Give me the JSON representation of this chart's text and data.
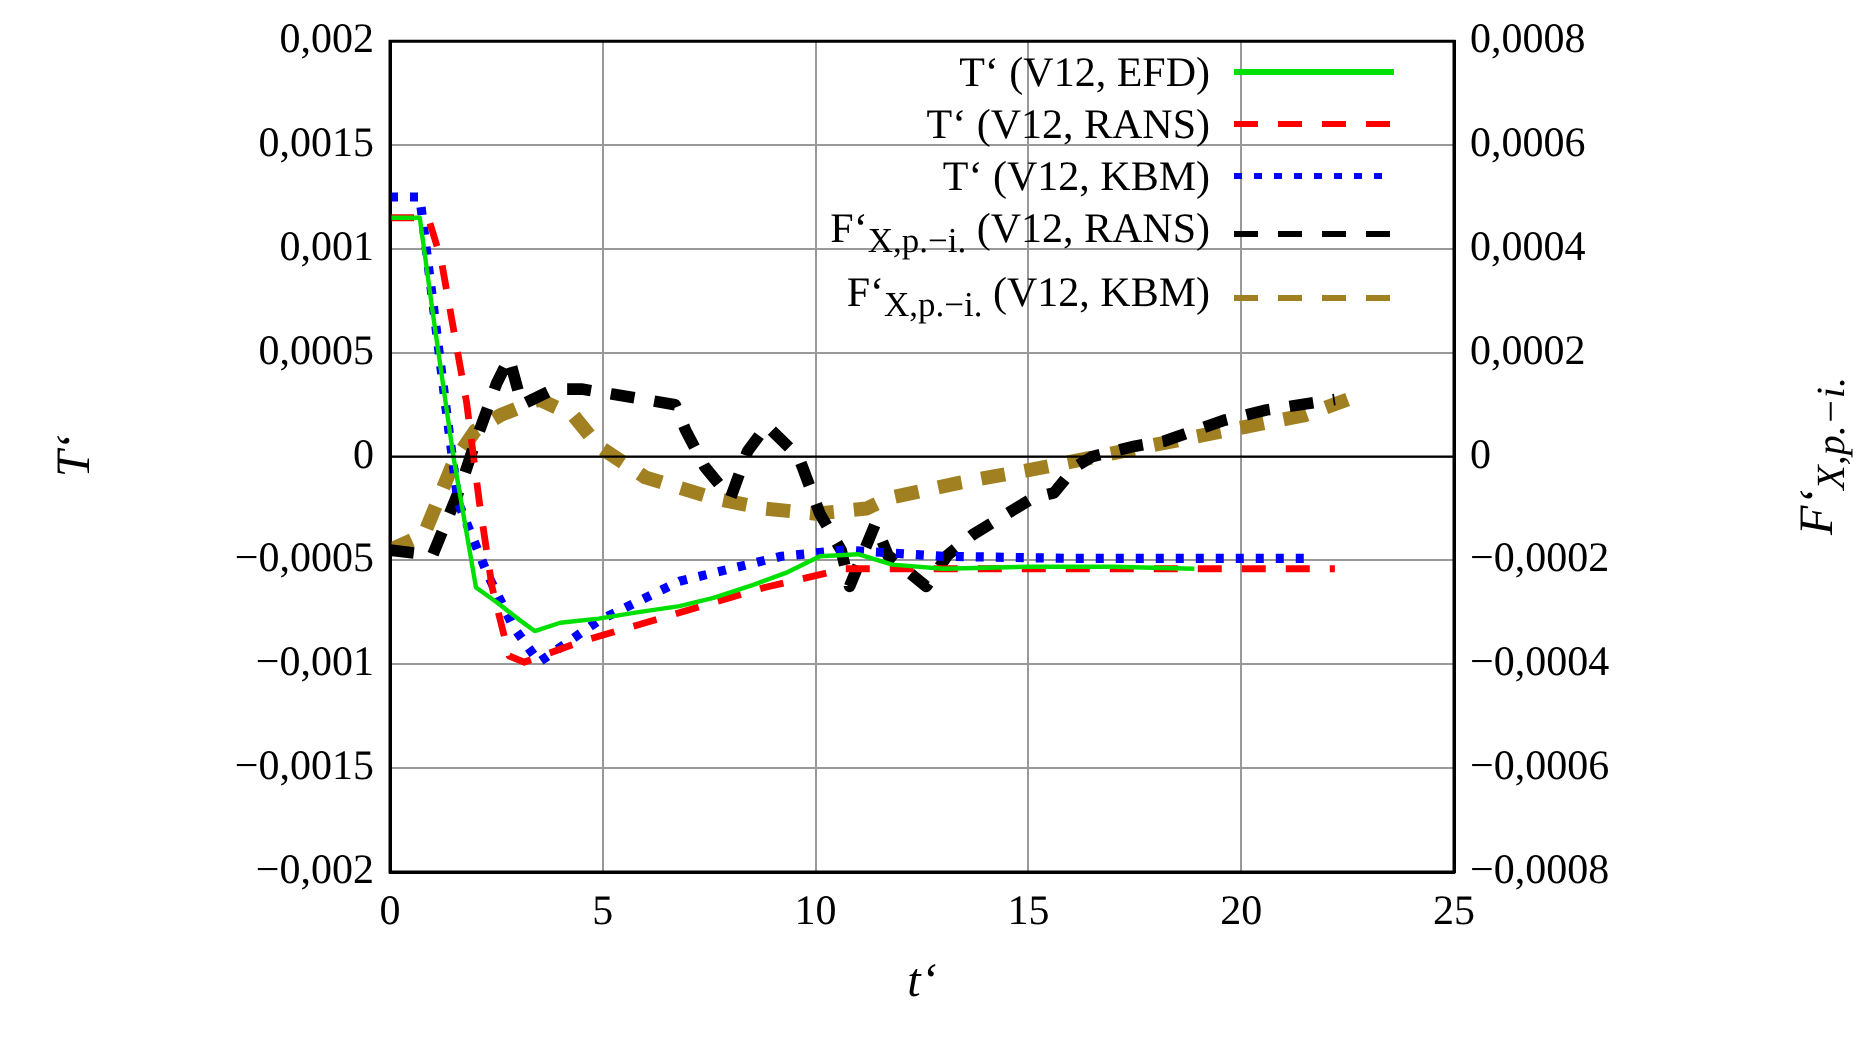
{
  "chart_data": {
    "type": "line",
    "xlabel": "t‘",
    "ylabel": "T‘",
    "y2label": "F‘$_{X,p.−i.}$",
    "xlim": [
      0,
      25
    ],
    "xticks": [
      0,
      5,
      10,
      15,
      20,
      25
    ],
    "ylim": [
      -0.002,
      0.002
    ],
    "yticks": [
      {
        "value": -0.002,
        "label": "−0,002"
      },
      {
        "value": -0.0015,
        "label": "−0,0015"
      },
      {
        "value": -0.001,
        "label": "−0,001"
      },
      {
        "value": -0.0005,
        "label": "−0,0005"
      },
      0,
      {
        "value": 0.0005,
        "label": "0,0005"
      },
      {
        "value": 0.001,
        "label": "0,001"
      },
      {
        "value": 0.0015,
        "label": "0,0015"
      },
      {
        "value": 0.002,
        "label": "0,002"
      }
    ],
    "y2lim": [
      -0.0008,
      0.0008
    ],
    "y2ticks": [
      {
        "value": -0.0008,
        "label": "−0,0008"
      },
      {
        "value": -0.0006,
        "label": "−0,0006"
      },
      {
        "value": -0.0004,
        "label": "−0,0004"
      },
      {
        "value": -0.0002,
        "label": "−0,0002"
      },
      0,
      {
        "value": 0.0002,
        "label": "0,0002"
      },
      {
        "value": 0.0004,
        "label": "0,0004"
      },
      {
        "value": 0.0006,
        "label": "0,0006"
      },
      {
        "value": 0.0008,
        "label": "0,0008"
      }
    ],
    "grid": true,
    "legend": "top right",
    "marker": "none",
    "ref_lines": [
      {
        "axis": "y",
        "value": 0,
        "color": "#000000"
      }
    ],
    "series": [
      {
        "name": "T‘ (V12, EFD)",
        "color": "#00e000",
        "line_style": "solid",
        "x": [
          0,
          0.7,
          1.0,
          1.49,
          2.02,
          2.5,
          3.0,
          3.4,
          4.0,
          4.9,
          5.8,
          6.8,
          7.6,
          8.5,
          9.3,
          10.1,
          11.0,
          11.8,
          13.0,
          15.0,
          17.0,
          18.9
        ],
        "values": [
          0.00115,
          0.00115,
          0.0007,
          0,
          -0.00063,
          -0.0007,
          -0.00078,
          -0.00084,
          -0.0008,
          -0.00078,
          -0.00075,
          -0.00072,
          -0.00068,
          -0.00062,
          -0.00056,
          -0.00048,
          -0.00047,
          -0.00052,
          -0.00054,
          -0.00053,
          -0.00053,
          -0.00054
        ]
      },
      {
        "name": "T‘ (V12, RANS)",
        "color": "#ff0000",
        "line_style": "dashed",
        "x": [
          0,
          0.9,
          1.2,
          1.8,
          2.1,
          2.4,
          2.8,
          3.15,
          4.5,
          6.0,
          8.8,
          10.7,
          13.0,
          16.0,
          19.0,
          22.2
        ],
        "values": [
          0.00115,
          0.00115,
          0.00095,
          0.00026,
          -0.00022,
          -0.00063,
          -0.00096,
          -0.00099,
          -0.00089,
          -0.0008,
          -0.00063,
          -0.00054,
          -0.00054,
          -0.00054,
          -0.00054,
          -0.00054
        ]
      },
      {
        "name": "T‘ (V12, KBM)",
        "color": "#0000ff",
        "line_style": "dotted",
        "x": [
          0,
          0.7,
          1.3,
          1.6,
          2.3,
          2.9,
          3.5,
          4.9,
          6.8,
          9.2,
          10.7,
          13.0,
          16.0,
          19.0,
          21.5
        ],
        "values": [
          0.00125,
          0.00125,
          0.00026,
          -0.00022,
          -0.00057,
          -0.00082,
          -0.00099,
          -0.00079,
          -0.0006,
          -0.00048,
          -0.00045,
          -0.00048,
          -0.00049,
          -0.00049,
          -0.00049
        ]
      },
      {
        "name": "F‘$_{X,p.−i.}$ (V12, RANS)",
        "color": "#000000",
        "line_style": "dashed",
        "axis": "y2",
        "x": [
          0,
          1.0,
          1.3,
          1.65,
          1.97,
          2.5,
          2.8,
          3.1,
          3.85,
          4.5,
          5.25,
          6.7,
          6.95,
          7.4,
          8.0,
          8.4,
          8.85,
          9.6,
          10.1,
          10.6,
          10.8,
          11.4,
          11.7,
          12.6,
          13.1,
          13.7,
          14.7,
          15.1,
          15.6,
          16.1,
          16.5,
          17.5,
          18.2,
          18.9,
          19.6,
          20.6,
          22.2
        ],
        "values": [
          -0.00018,
          -0.00019,
          -0.00013,
          -6e-05,
          2e-05,
          0.00014,
          0.00019,
          0.0001,
          0.00013,
          0.00013,
          0.00012,
          0.0001,
          5e-05,
          -2e-05,
          -8e-05,
          1e-05,
          6e-05,
          0,
          -0.00011,
          -0.00018,
          -0.00025,
          -0.00013,
          -0.00019,
          -0.00025,
          -0.00019,
          -0.00015,
          -0.0001,
          -8e-05,
          -7e-05,
          -2e-05,
          0,
          2e-05,
          3e-05,
          5e-05,
          7e-05,
          9e-05,
          0.00011
        ]
      },
      {
        "name": "F‘$_{X,p.−i.}$ (V12, KBM)",
        "color": "#a08020",
        "line_style": "dashed",
        "axis": "y2",
        "x": [
          0,
          0.8,
          1.5,
          2.0,
          2.6,
          3.5,
          4.3,
          4.9,
          6.0,
          7.6,
          8.8,
          10.0,
          11.2,
          11.7,
          13.4,
          15.4,
          17.8,
          21.5,
          22.5
        ],
        "values": [
          -0.00018,
          -0.00015,
          -1e-05,
          5e-05,
          8e-05,
          0.00011,
          8e-05,
          2e-05,
          -4e-05,
          -8e-05,
          -0.0001,
          -0.00011,
          -0.0001,
          -8e-05,
          -5e-05,
          -2e-05,
          2e-05,
          8e-05,
          0.00011
        ]
      }
    ]
  }
}
